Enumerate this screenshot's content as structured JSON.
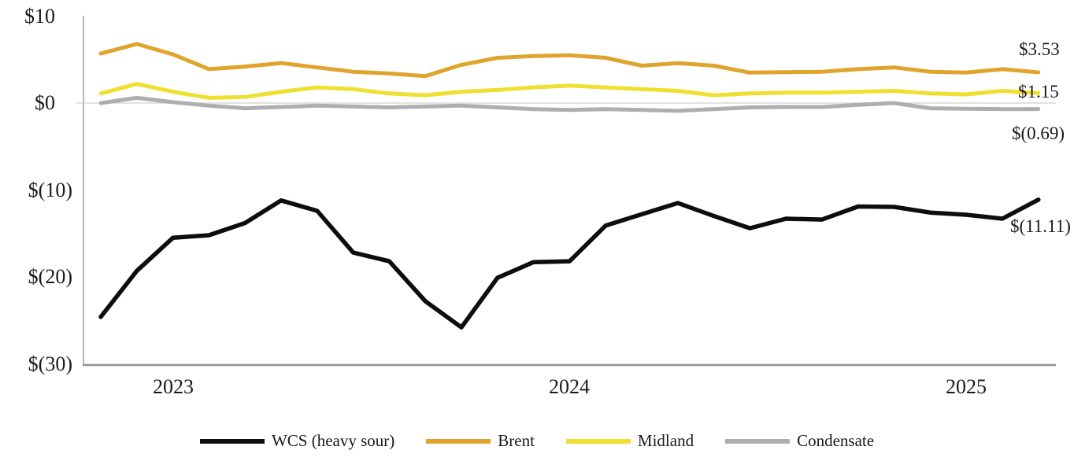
{
  "chart_data": {
    "type": "line",
    "n_points": 27,
    "title": "",
    "xlabel": "",
    "ylabel": "",
    "ylim": [
      -30,
      10
    ],
    "grid": "zero-line-only",
    "legend_position": "bottom",
    "axis_color_y": "#b5b5b5",
    "axis_color_x": "#8f8f8f",
    "zero_line_color": "#d9d9d9",
    "y_ticks": [
      {
        "label": "$10",
        "value": 10
      },
      {
        "label": "$0",
        "value": 0
      },
      {
        "label": "$(10)",
        "value": -10
      },
      {
        "label": "$(20)",
        "value": -20
      },
      {
        "label": "$(30)",
        "value": -30
      }
    ],
    "x_ticks": [
      {
        "label": "2023",
        "point_index": 2
      },
      {
        "label": "2024",
        "point_index": 13
      },
      {
        "label": "2025",
        "point_index": 24
      }
    ],
    "series": [
      {
        "name": "WCS (heavy sour)",
        "color": "#0d0d0d",
        "end_label": "$(11.11)",
        "values": [
          -24.6,
          -19.3,
          -15.5,
          -15.2,
          -13.8,
          -11.2,
          -12.4,
          -17.2,
          -18.2,
          -22.8,
          -25.8,
          -20.1,
          -18.3,
          -18.2,
          -14.1,
          -12.8,
          -11.5,
          -13.0,
          -14.4,
          -13.3,
          -13.4,
          -11.9,
          -11.95,
          -12.6,
          -12.85,
          -13.3,
          -11.11
        ]
      },
      {
        "name": "Brent",
        "color": "#e0a42d",
        "end_label": "$3.53",
        "values": [
          5.7,
          6.8,
          5.6,
          3.9,
          4.2,
          4.6,
          4.1,
          3.6,
          3.4,
          3.1,
          4.4,
          5.2,
          5.4,
          5.5,
          5.2,
          4.3,
          4.6,
          4.3,
          3.5,
          3.55,
          3.6,
          3.9,
          4.1,
          3.6,
          3.5,
          3.9,
          3.53
        ]
      },
      {
        "name": "Midland",
        "color": "#efe02f",
        "end_label": "$1.15",
        "values": [
          1.1,
          2.2,
          1.3,
          0.6,
          0.7,
          1.3,
          1.8,
          1.6,
          1.1,
          0.9,
          1.3,
          1.5,
          1.8,
          2.0,
          1.8,
          1.6,
          1.4,
          0.9,
          1.1,
          1.2,
          1.2,
          1.3,
          1.4,
          1.1,
          1.0,
          1.4,
          1.15
        ]
      },
      {
        "name": "Condensate",
        "color": "#aeaeae",
        "end_label": "$(0.69)",
        "values": [
          0.0,
          0.6,
          0.1,
          -0.3,
          -0.6,
          -0.45,
          -0.3,
          -0.4,
          -0.5,
          -0.4,
          -0.3,
          -0.5,
          -0.7,
          -0.8,
          -0.7,
          -0.8,
          -0.9,
          -0.7,
          -0.5,
          -0.45,
          -0.45,
          -0.2,
          0.0,
          -0.6,
          -0.65,
          -0.7,
          -0.69
        ]
      }
    ]
  }
}
